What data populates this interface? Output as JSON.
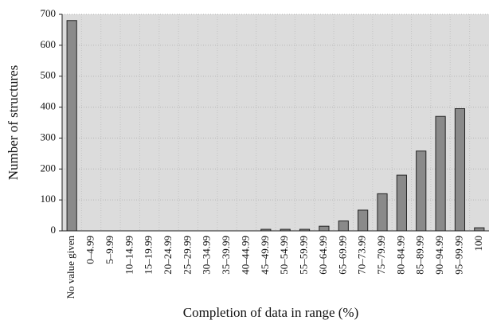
{
  "chart_data": {
    "type": "bar",
    "x_label": "Completion of data in range (%)",
    "y_label": "Number of structures",
    "categories": [
      "No value given",
      "0–4.99",
      "5–9.99",
      "10–14.99",
      "15–19.99",
      "20–24.99",
      "25–29.99",
      "30–34.99",
      "35–39.99",
      "40–44.99",
      "45–49.99",
      "50–54.99",
      "55–59.99",
      "60–64.99",
      "65–69.99",
      "70–73.99",
      "75–79.99",
      "80–84.99",
      "85–89.99",
      "90–94.99",
      "95–99.99",
      "100"
    ],
    "values": [
      680,
      0,
      0,
      0,
      0,
      0,
      0,
      0,
      0,
      0,
      5,
      5,
      5,
      15,
      32,
      67,
      120,
      180,
      258,
      370,
      395,
      10
    ],
    "color": "#8a8a8a",
    "ylim": [
      0,
      700
    ],
    "yticks": [
      0,
      100,
      200,
      300,
      400,
      500,
      600,
      700
    ],
    "grid": true
  }
}
